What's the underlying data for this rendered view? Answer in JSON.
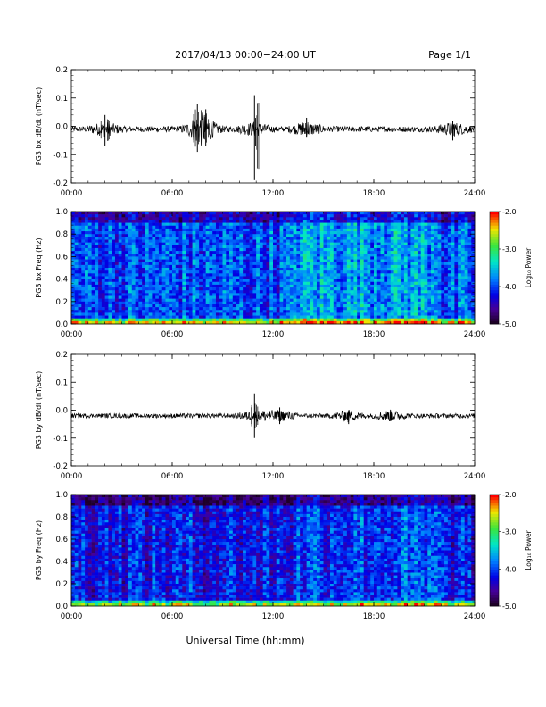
{
  "header": {
    "title": "2017/04/13  00:00−24:00 UT",
    "page": "Page 1/1"
  },
  "x_axis_label": "Universal Time (hh:mm)",
  "colorbar": {
    "label": "Log₁₀ Power",
    "ticks": [
      "-2.0",
      "-3.0",
      "-4.0",
      "-5.0"
    ]
  },
  "chart_data": [
    {
      "type": "line",
      "ylabel": "PG3 bx dB/dt (nT/sec)",
      "xlim": [
        0,
        24
      ],
      "ylim": [
        -0.2,
        0.2
      ],
      "x_ticks": [
        "00:00",
        "06:00",
        "12:00",
        "18:00",
        "24:00"
      ],
      "y_ticks": [
        "0.2",
        "0.1",
        "0.0",
        "-0.1",
        "-0.2"
      ],
      "series": [
        {
          "baseline": -0.01,
          "noise_amplitude": 0.01,
          "spikes": [
            {
              "x": 2.0,
              "min": -0.07,
              "max": 0.04
            },
            {
              "x": 7.5,
              "min": -0.09,
              "max": 0.08
            },
            {
              "x": 8.0,
              "min": -0.07,
              "max": 0.06
            },
            {
              "x": 10.9,
              "min": -0.19,
              "max": 0.11
            },
            {
              "x": 14.0,
              "min": -0.04,
              "max": 0.03
            },
            {
              "x": 22.7,
              "min": -0.05,
              "max": 0.02
            }
          ]
        }
      ]
    },
    {
      "type": "heatmap",
      "ylabel": "PG3 bx Freq (Hz)",
      "xlim": [
        0,
        24
      ],
      "ylim": [
        0.0,
        1.0
      ],
      "x_ticks": [
        "00:00",
        "06:00",
        "12:00",
        "18:00",
        "24:00"
      ],
      "y_ticks": [
        "1.0",
        "0.8",
        "0.6",
        "0.4",
        "0.2",
        "0.0"
      ],
      "color_range": [
        -5.0,
        -2.0
      ],
      "mean_log_power": -4.0
    },
    {
      "type": "line",
      "ylabel": "PG3 by dB/dt (nT/sec)",
      "xlim": [
        0,
        24
      ],
      "ylim": [
        -0.2,
        0.2
      ],
      "x_ticks": [
        "00:00",
        "06:00",
        "12:00",
        "18:00",
        "24:00"
      ],
      "y_ticks": [
        "0.2",
        "0.1",
        "0.0",
        "-0.1",
        "-0.2"
      ],
      "series": [
        {
          "baseline": -0.02,
          "noise_amplitude": 0.008,
          "spikes": [
            {
              "x": 10.9,
              "min": -0.1,
              "max": 0.06
            },
            {
              "x": 12.4,
              "min": -0.05,
              "max": 0.01
            },
            {
              "x": 16.5,
              "min": -0.05,
              "max": 0.0
            },
            {
              "x": 19.0,
              "min": -0.04,
              "max": 0.0
            }
          ]
        }
      ]
    },
    {
      "type": "heatmap",
      "ylabel": "PG3 by Freq (Hz)",
      "xlim": [
        0,
        24
      ],
      "ylim": [
        0.0,
        1.0
      ],
      "x_ticks": [
        "00:00",
        "06:00",
        "12:00",
        "18:00",
        "24:00"
      ],
      "y_ticks": [
        "1.0",
        "0.8",
        "0.6",
        "0.4",
        "0.2",
        "0.0"
      ],
      "color_range": [
        -5.0,
        -2.0
      ],
      "mean_log_power": -4.2
    }
  ]
}
